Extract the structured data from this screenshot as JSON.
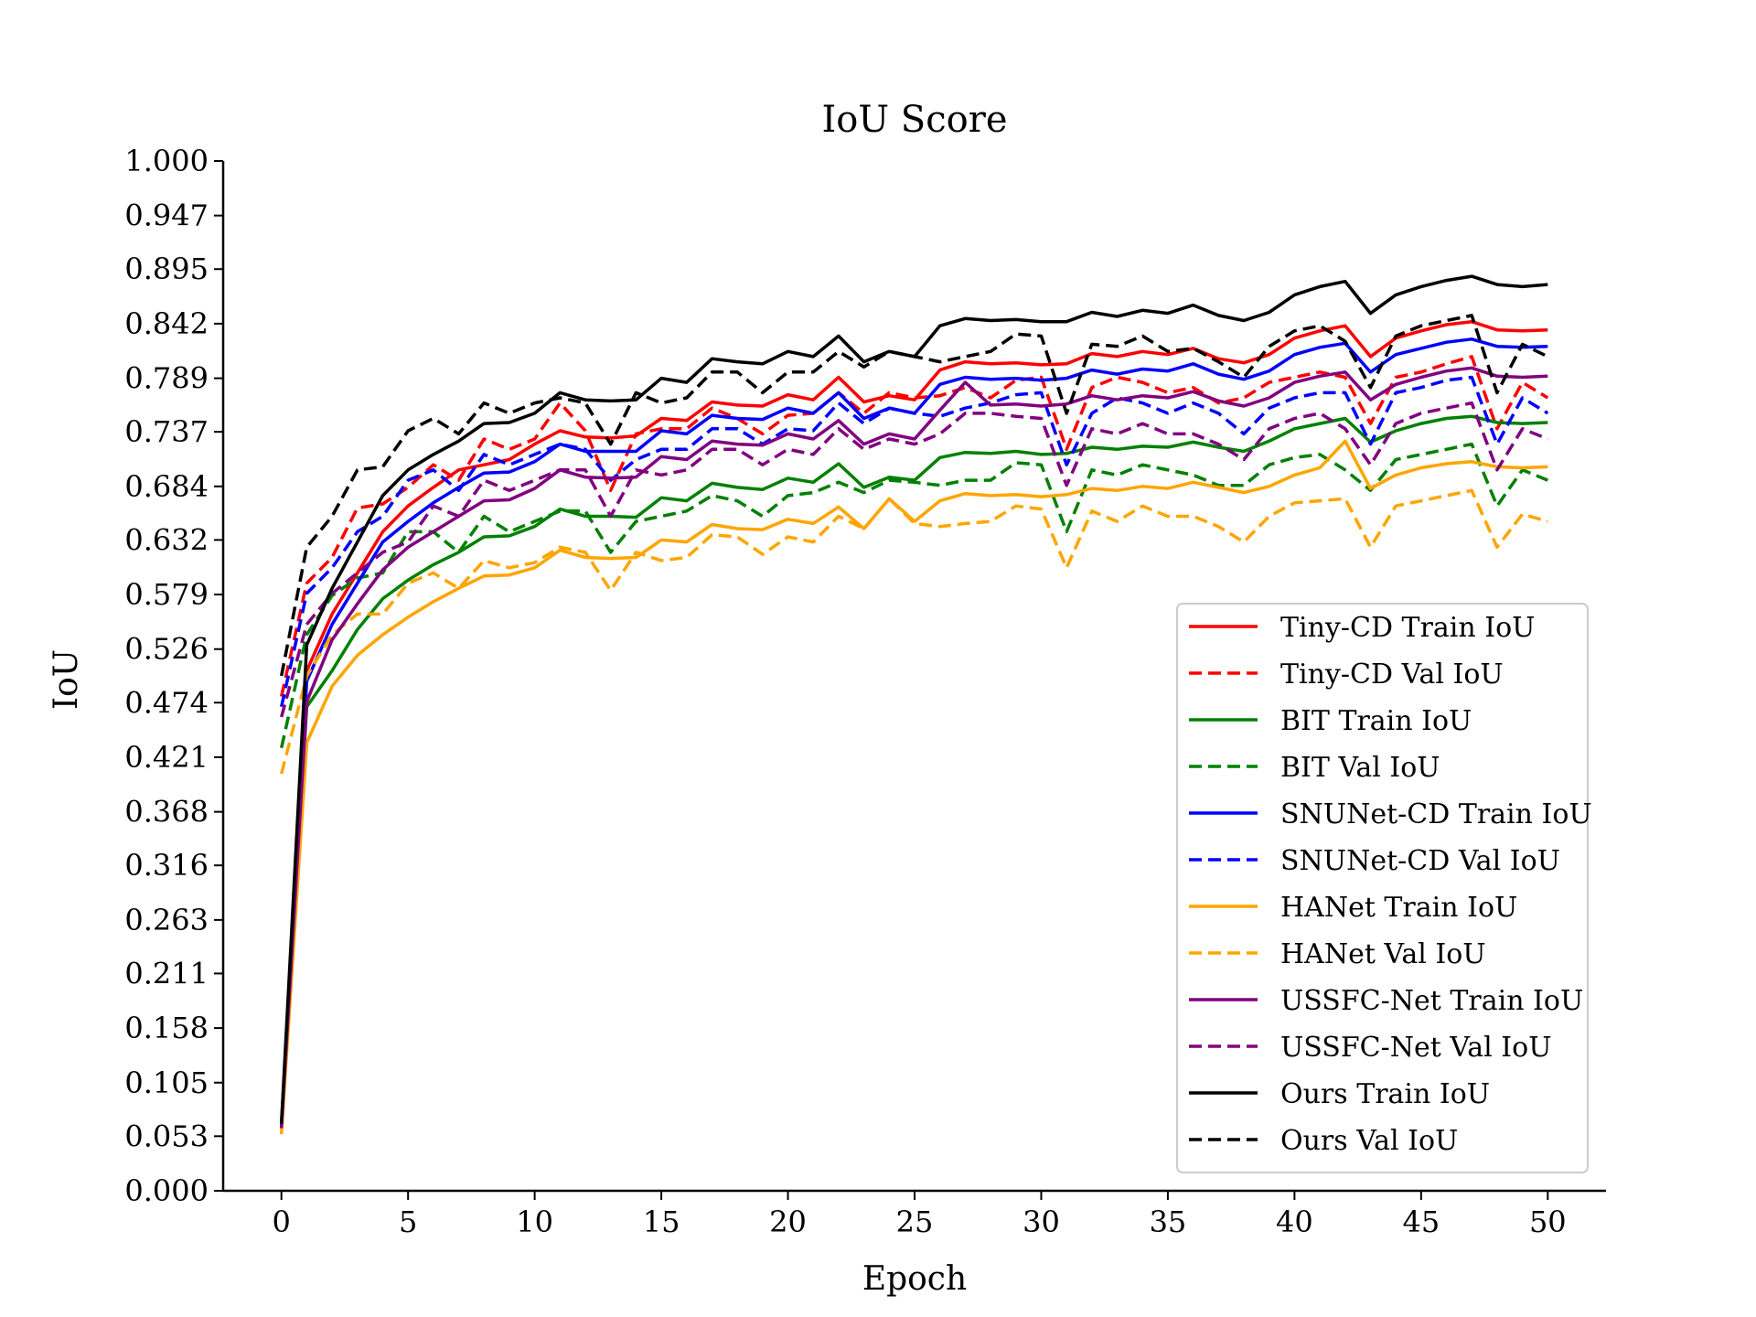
{
  "chart_data": {
    "type": "line",
    "title": "IoU Score",
    "xlabel": "Epoch",
    "ylabel": "IoU",
    "xlim": [
      -2.3,
      52.3
    ],
    "ylim": [
      0,
      1
    ],
    "xticks": [
      0,
      5,
      10,
      15,
      20,
      25,
      30,
      35,
      40,
      45,
      50
    ],
    "yticks": [
      "0.000",
      "0.053",
      "0.105",
      "0.158",
      "0.211",
      "0.263",
      "0.316",
      "0.368",
      "0.421",
      "0.474",
      "0.526",
      "0.579",
      "0.632",
      "0.684",
      "0.737",
      "0.789",
      "0.842",
      "0.895",
      "0.947",
      "1.000"
    ],
    "legend_position": "lower-right",
    "series": [
      {
        "name": "Tiny-CD Train IoU",
        "color": "#ff0000",
        "dashed": false,
        "values": [
          0.065,
          0.505,
          0.56,
          0.6,
          0.64,
          0.665,
          0.683,
          0.7,
          0.705,
          0.71,
          0.725,
          0.738,
          0.732,
          0.731,
          0.733,
          0.75,
          0.748,
          0.766,
          0.763,
          0.762,
          0.773,
          0.768,
          0.79,
          0.766,
          0.772,
          0.768,
          0.797,
          0.805,
          0.803,
          0.804,
          0.802,
          0.803,
          0.813,
          0.81,
          0.815,
          0.812,
          0.818,
          0.808,
          0.804,
          0.812,
          0.828,
          0.835,
          0.84,
          0.81,
          0.828,
          0.835,
          0.841,
          0.844,
          0.836,
          0.835,
          0.836
        ]
      },
      {
        "name": "Tiny-CD Val IoU",
        "color": "#ff0000",
        "dashed": true,
        "values": [
          0.48,
          0.59,
          0.615,
          0.663,
          0.667,
          0.683,
          0.705,
          0.69,
          0.73,
          0.72,
          0.73,
          0.765,
          0.738,
          0.68,
          0.735,
          0.74,
          0.74,
          0.76,
          0.75,
          0.735,
          0.753,
          0.755,
          0.775,
          0.755,
          0.775,
          0.77,
          0.772,
          0.78,
          0.77,
          0.787,
          0.79,
          0.72,
          0.78,
          0.79,
          0.785,
          0.775,
          0.78,
          0.765,
          0.77,
          0.785,
          0.79,
          0.795,
          0.79,
          0.745,
          0.79,
          0.795,
          0.803,
          0.81,
          0.74,
          0.785,
          0.77
        ]
      },
      {
        "name": "BIT Train IoU",
        "color": "#008000",
        "dashed": false,
        "values": [
          0.06,
          0.47,
          0.505,
          0.545,
          0.575,
          0.593,
          0.608,
          0.62,
          0.635,
          0.636,
          0.645,
          0.662,
          0.655,
          0.655,
          0.654,
          0.673,
          0.67,
          0.687,
          0.683,
          0.681,
          0.692,
          0.688,
          0.706,
          0.683,
          0.693,
          0.69,
          0.712,
          0.717,
          0.716,
          0.718,
          0.715,
          0.716,
          0.722,
          0.72,
          0.723,
          0.722,
          0.727,
          0.722,
          0.718,
          0.728,
          0.74,
          0.745,
          0.75,
          0.727,
          0.738,
          0.745,
          0.75,
          0.752,
          0.746,
          0.745,
          0.746
        ]
      },
      {
        "name": "BIT Val IoU",
        "color": "#008000",
        "dashed": true,
        "values": [
          0.43,
          0.54,
          0.578,
          0.595,
          0.6,
          0.64,
          0.64,
          0.62,
          0.655,
          0.64,
          0.65,
          0.66,
          0.66,
          0.62,
          0.65,
          0.655,
          0.66,
          0.675,
          0.67,
          0.655,
          0.675,
          0.678,
          0.688,
          0.678,
          0.69,
          0.688,
          0.685,
          0.69,
          0.69,
          0.707,
          0.705,
          0.64,
          0.7,
          0.695,
          0.705,
          0.7,
          0.695,
          0.685,
          0.685,
          0.705,
          0.712,
          0.715,
          0.7,
          0.68,
          0.71,
          0.715,
          0.72,
          0.725,
          0.665,
          0.7,
          0.69
        ]
      },
      {
        "name": "SNUNet-CD Train IoU",
        "color": "#0000ff",
        "dashed": false,
        "values": [
          0.063,
          0.495,
          0.55,
          0.59,
          0.63,
          0.65,
          0.668,
          0.683,
          0.697,
          0.698,
          0.708,
          0.725,
          0.718,
          0.718,
          0.718,
          0.738,
          0.735,
          0.753,
          0.75,
          0.749,
          0.76,
          0.755,
          0.775,
          0.75,
          0.76,
          0.755,
          0.783,
          0.79,
          0.788,
          0.789,
          0.787,
          0.789,
          0.797,
          0.793,
          0.798,
          0.796,
          0.803,
          0.793,
          0.788,
          0.796,
          0.812,
          0.819,
          0.823,
          0.795,
          0.812,
          0.818,
          0.824,
          0.827,
          0.82,
          0.819,
          0.82
        ]
      },
      {
        "name": "SNUNet-CD Val IoU",
        "color": "#0000ff",
        "dashed": true,
        "values": [
          0.47,
          0.58,
          0.605,
          0.64,
          0.655,
          0.69,
          0.7,
          0.68,
          0.715,
          0.705,
          0.715,
          0.725,
          0.72,
          0.69,
          0.71,
          0.72,
          0.72,
          0.74,
          0.74,
          0.725,
          0.74,
          0.738,
          0.765,
          0.745,
          0.76,
          0.755,
          0.752,
          0.76,
          0.765,
          0.773,
          0.775,
          0.705,
          0.755,
          0.77,
          0.765,
          0.755,
          0.765,
          0.755,
          0.735,
          0.76,
          0.77,
          0.775,
          0.775,
          0.725,
          0.775,
          0.78,
          0.787,
          0.79,
          0.725,
          0.77,
          0.755
        ]
      },
      {
        "name": "HANet Train IoU",
        "color": "#ffa500",
        "dashed": false,
        "values": [
          0.055,
          0.435,
          0.49,
          0.52,
          0.54,
          0.557,
          0.572,
          0.585,
          0.597,
          0.598,
          0.605,
          0.622,
          0.615,
          0.614,
          0.615,
          0.632,
          0.63,
          0.647,
          0.643,
          0.642,
          0.652,
          0.648,
          0.664,
          0.643,
          0.672,
          0.65,
          0.67,
          0.677,
          0.675,
          0.676,
          0.674,
          0.676,
          0.682,
          0.68,
          0.684,
          0.682,
          0.688,
          0.683,
          0.678,
          0.684,
          0.695,
          0.702,
          0.728,
          0.682,
          0.695,
          0.702,
          0.706,
          0.708,
          0.703,
          0.702,
          0.703
        ]
      },
      {
        "name": "HANet Val IoU",
        "color": "#ffa500",
        "dashed": true,
        "values": [
          0.405,
          0.5,
          0.54,
          0.56,
          0.56,
          0.59,
          0.6,
          0.585,
          0.612,
          0.605,
          0.61,
          0.625,
          0.62,
          0.583,
          0.62,
          0.612,
          0.615,
          0.637,
          0.635,
          0.618,
          0.635,
          0.63,
          0.655,
          0.643,
          0.672,
          0.648,
          0.645,
          0.648,
          0.65,
          0.665,
          0.662,
          0.605,
          0.66,
          0.65,
          0.665,
          0.655,
          0.655,
          0.645,
          0.63,
          0.655,
          0.668,
          0.67,
          0.672,
          0.625,
          0.665,
          0.67,
          0.675,
          0.68,
          0.625,
          0.657,
          0.65
        ]
      },
      {
        "name": "USSFC-Net Train IoU",
        "color": "#800080",
        "dashed": false,
        "values": [
          0.061,
          0.475,
          0.535,
          0.57,
          0.603,
          0.625,
          0.64,
          0.655,
          0.67,
          0.671,
          0.682,
          0.7,
          0.693,
          0.692,
          0.693,
          0.713,
          0.71,
          0.728,
          0.725,
          0.724,
          0.735,
          0.73,
          0.748,
          0.725,
          0.735,
          0.73,
          0.758,
          0.785,
          0.763,
          0.764,
          0.762,
          0.764,
          0.772,
          0.768,
          0.772,
          0.77,
          0.776,
          0.767,
          0.762,
          0.77,
          0.785,
          0.791,
          0.795,
          0.768,
          0.783,
          0.79,
          0.796,
          0.799,
          0.791,
          0.79,
          0.791
        ]
      },
      {
        "name": "USSFC-Net Val IoU",
        "color": "#800080",
        "dashed": true,
        "values": [
          0.46,
          0.55,
          0.58,
          0.6,
          0.62,
          0.63,
          0.665,
          0.655,
          0.69,
          0.68,
          0.69,
          0.7,
          0.7,
          0.655,
          0.7,
          0.695,
          0.7,
          0.72,
          0.72,
          0.705,
          0.72,
          0.715,
          0.74,
          0.72,
          0.73,
          0.725,
          0.735,
          0.755,
          0.755,
          0.752,
          0.75,
          0.685,
          0.74,
          0.735,
          0.745,
          0.735,
          0.735,
          0.725,
          0.71,
          0.74,
          0.75,
          0.755,
          0.74,
          0.705,
          0.745,
          0.755,
          0.76,
          0.765,
          0.7,
          0.74,
          0.73
        ]
      },
      {
        "name": "Ours Train IoU",
        "color": "#000000",
        "dashed": false,
        "values": [
          0.065,
          0.53,
          0.585,
          0.63,
          0.675,
          0.7,
          0.715,
          0.728,
          0.745,
          0.746,
          0.755,
          0.775,
          0.768,
          0.767,
          0.768,
          0.789,
          0.785,
          0.808,
          0.805,
          0.803,
          0.815,
          0.81,
          0.83,
          0.805,
          0.815,
          0.81,
          0.84,
          0.847,
          0.845,
          0.846,
          0.844,
          0.844,
          0.853,
          0.849,
          0.855,
          0.852,
          0.86,
          0.85,
          0.845,
          0.853,
          0.87,
          0.878,
          0.883,
          0.852,
          0.87,
          0.878,
          0.884,
          0.888,
          0.88,
          0.878,
          0.88
        ]
      },
      {
        "name": "Ours Val IoU",
        "color": "#000000",
        "dashed": true,
        "values": [
          0.5,
          0.625,
          0.655,
          0.7,
          0.703,
          0.738,
          0.75,
          0.735,
          0.765,
          0.755,
          0.765,
          0.77,
          0.765,
          0.725,
          0.775,
          0.765,
          0.77,
          0.795,
          0.795,
          0.775,
          0.795,
          0.795,
          0.815,
          0.8,
          0.815,
          0.81,
          0.805,
          0.81,
          0.815,
          0.832,
          0.83,
          0.755,
          0.822,
          0.82,
          0.83,
          0.815,
          0.818,
          0.805,
          0.79,
          0.82,
          0.835,
          0.84,
          0.825,
          0.78,
          0.83,
          0.84,
          0.845,
          0.85,
          0.775,
          0.822,
          0.81
        ]
      }
    ]
  }
}
